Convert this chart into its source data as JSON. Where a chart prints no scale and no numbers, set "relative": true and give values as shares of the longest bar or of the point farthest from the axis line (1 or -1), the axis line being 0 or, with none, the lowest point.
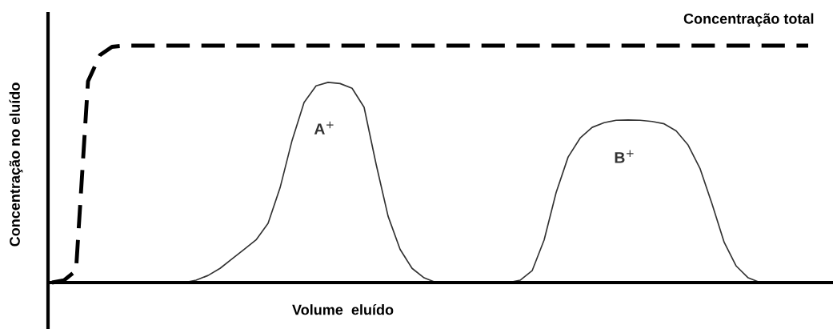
{
  "chart_data": {
    "type": "line",
    "relative": true,
    "xlabel": "Volume  eluído",
    "ylabel": "Concentração no eluído",
    "categories": [
      null,
      null,
      null,
      null,
      null,
      null,
      null,
      null,
      null,
      null,
      null,
      null,
      null,
      null,
      null,
      null,
      null,
      null,
      null,
      null,
      null,
      null,
      null,
      null,
      null,
      null,
      null,
      null,
      null,
      null,
      null,
      null,
      null,
      null,
      null,
      null,
      null,
      null,
      null,
      null,
      null,
      null,
      null,
      null,
      null,
      null,
      null,
      null,
      null,
      null,
      null,
      null,
      null,
      null,
      null,
      null,
      null,
      null,
      null,
      null,
      null,
      null,
      null,
      null,
      null
    ],
    "series": [
      {
        "name": "Concentração total",
        "color": "#000000",
        "line_style": "dashed",
        "values": [
          0,
          0.01,
          0.05,
          0.85,
          0.96,
          0.995,
          1,
          1,
          1,
          1,
          1,
          1,
          1,
          1,
          1,
          1,
          1,
          1,
          1,
          1,
          1,
          1,
          1,
          1,
          1,
          1,
          1,
          1,
          1,
          1,
          1,
          1,
          1,
          1,
          1,
          1,
          1,
          1,
          1,
          1,
          1,
          1,
          1,
          1,
          1,
          1,
          1,
          1,
          1,
          1,
          1,
          1,
          1,
          1,
          1,
          1,
          1,
          1,
          1,
          1,
          1,
          1,
          1,
          1,
          null
        ]
      },
      {
        "name": "A$^{+}$",
        "color": "#333333",
        "line_style": "solid",
        "values": [
          null,
          null,
          null,
          null,
          null,
          null,
          null,
          null,
          null,
          null,
          null,
          0,
          0.01,
          0.03,
          0.06,
          0.1,
          0.14,
          0.18,
          0.25,
          0.4,
          0.6,
          0.76,
          0.83,
          0.845,
          0.84,
          0.82,
          0.74,
          0.5,
          0.28,
          0.14,
          0.06,
          0.02,
          0,
          0,
          null,
          null,
          null,
          null,
          null,
          null,
          null,
          null,
          null,
          null,
          null,
          null,
          null,
          null,
          null,
          null,
          null,
          null,
          null,
          null,
          null,
          null,
          null,
          null,
          null,
          null,
          null,
          null,
          null,
          null,
          null
        ]
      },
      {
        "name": "B$^{+}$",
        "color": "#333333",
        "line_style": "solid",
        "values": [
          null,
          null,
          null,
          null,
          null,
          null,
          null,
          null,
          null,
          null,
          null,
          null,
          null,
          null,
          null,
          null,
          null,
          null,
          null,
          null,
          null,
          null,
          null,
          null,
          null,
          null,
          null,
          null,
          null,
          null,
          null,
          null,
          null,
          null,
          null,
          null,
          null,
          null,
          0,
          0.01,
          0.05,
          0.18,
          0.38,
          0.53,
          0.61,
          0.655,
          0.675,
          0.685,
          0.686,
          0.685,
          0.68,
          0.67,
          0.64,
          0.58,
          0.48,
          0.33,
          0.17,
          0.07,
          0.02,
          0,
          null,
          null,
          null,
          null,
          null
        ]
      }
    ]
  }
}
